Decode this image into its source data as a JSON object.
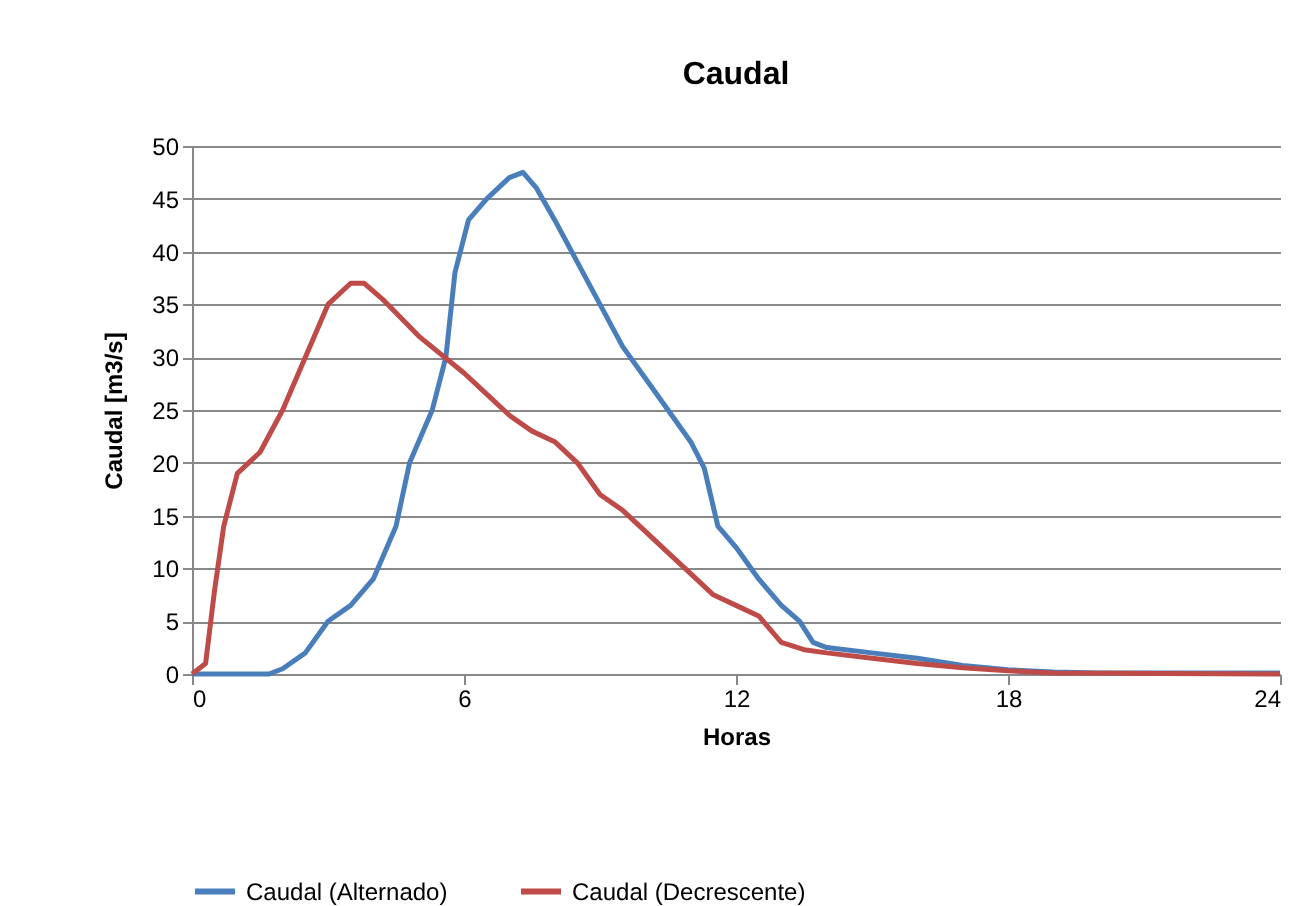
{
  "chart_data": {
    "type": "line",
    "title": "Caudal",
    "xlabel": "Horas",
    "ylabel": "Caudal [m3/s]",
    "xlim": [
      0,
      24
    ],
    "xticks": [
      0,
      6,
      12,
      18,
      24
    ],
    "ylim": [
      0,
      50
    ],
    "yticks": [
      0,
      5,
      10,
      15,
      20,
      25,
      30,
      35,
      40,
      45,
      50
    ],
    "grid": "y",
    "legend": "bottom",
    "marker": "none",
    "line_style": "solid",
    "series": [
      {
        "name": "Caudal (Alternado)",
        "color": "#4a7ebb",
        "x": [
          0,
          1,
          1.7,
          2,
          2.5,
          3,
          3.5,
          4,
          4.5,
          4.8,
          5.3,
          5.6,
          5.8,
          6.1,
          6.5,
          7,
          7.3,
          7.6,
          8,
          8.5,
          9,
          9.5,
          10,
          10.5,
          11,
          11.3,
          11.6,
          12,
          12.5,
          13,
          13.4,
          13.7,
          14,
          15,
          16,
          17,
          18,
          19,
          20,
          22,
          24
        ],
        "values": [
          0,
          0,
          0,
          0.5,
          2,
          5,
          6.5,
          9,
          14,
          20,
          25,
          30,
          38,
          43,
          45,
          47,
          47.5,
          46,
          43,
          39,
          35,
          31,
          28,
          25,
          22,
          19.5,
          14,
          12,
          9,
          6.5,
          5,
          3,
          2.5,
          2,
          1.5,
          0.8,
          0.4,
          0.2,
          0.1,
          0.1,
          0.1
        ]
      },
      {
        "name": "Caudal (Decrescente)",
        "color": "#be4b48",
        "x": [
          0,
          0.3,
          0.5,
          0.7,
          1,
          1.5,
          2,
          2.5,
          3,
          3.5,
          3.8,
          4.2,
          5,
          6,
          6.5,
          7,
          7.5,
          8,
          8.5,
          9,
          9.5,
          10,
          10.5,
          11,
          11.5,
          12,
          12.5,
          13,
          13.5,
          14,
          15,
          16,
          17,
          18,
          19,
          24
        ],
        "values": [
          0,
          1,
          8,
          14,
          19,
          21,
          25,
          30,
          35,
          37,
          37,
          35.5,
          32,
          28.5,
          26.5,
          24.5,
          23,
          22,
          20,
          17,
          15.5,
          13.5,
          11.5,
          9.5,
          7.5,
          6.5,
          5.5,
          3,
          2.3,
          2,
          1.5,
          1,
          0.6,
          0.3,
          0.1,
          0
        ]
      }
    ]
  }
}
